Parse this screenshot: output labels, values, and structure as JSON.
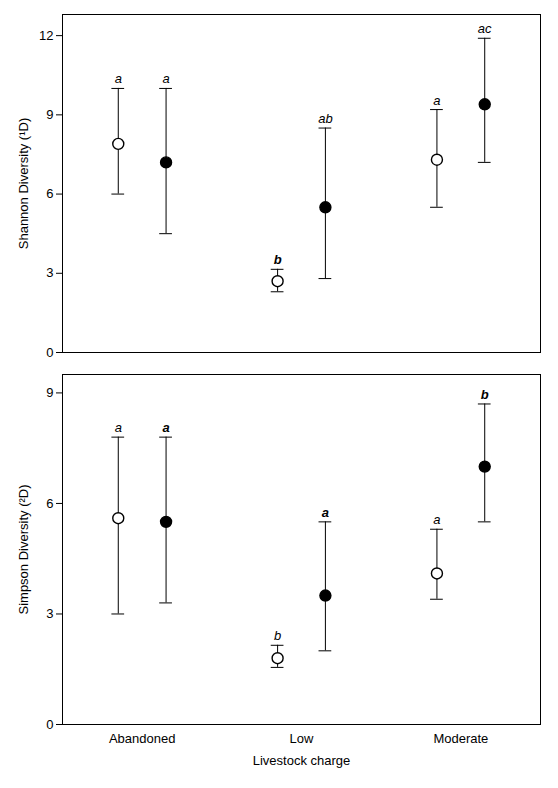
{
  "chart_data": [
    {
      "type": "scatter",
      "categories": [
        "Abandoned",
        "Low",
        "Moderate"
      ],
      "ylabel": "Shannon Diversity (¹D)",
      "ylim": [
        0,
        12.8
      ],
      "yticks": [
        0,
        3,
        6,
        9,
        12
      ],
      "tick_labels": "y",
      "series": [
        {
          "marker": "circle_open",
          "color": "black",
          "values": [
            7.9,
            2.7,
            7.3
          ],
          "yerr_lo": [
            1.9,
            0.4,
            1.8
          ],
          "yerr_hi": [
            2.1,
            0.45,
            1.9
          ],
          "labels": [
            "a",
            "b",
            "a"
          ],
          "labels_bold": [
            false,
            true,
            false
          ]
        },
        {
          "marker": "circle",
          "color": "black",
          "values": [
            7.2,
            5.5,
            9.4
          ],
          "yerr_lo": [
            2.7,
            2.7,
            2.2
          ],
          "yerr_hi": [
            2.8,
            3.0,
            2.5
          ],
          "labels": [
            "a",
            "ab",
            "ac"
          ],
          "labels_bold": [
            false,
            false,
            false
          ]
        }
      ]
    },
    {
      "type": "scatter",
      "categories": [
        "Abandoned",
        "Low",
        "Moderate"
      ],
      "xlabel": "Livestock charge",
      "ylabel": "Simpson Diversity (²D)",
      "ylim": [
        0,
        9.5
      ],
      "yticks": [
        0,
        3,
        6,
        9
      ],
      "series": [
        {
          "marker": "circle_open",
          "color": "black",
          "values": [
            5.6,
            1.8,
            4.1
          ],
          "yerr_lo": [
            2.6,
            0.25,
            0.7
          ],
          "yerr_hi": [
            2.2,
            0.35,
            1.2
          ],
          "labels": [
            "a",
            "b",
            "a"
          ],
          "labels_bold": [
            false,
            false,
            false
          ]
        },
        {
          "marker": "circle",
          "color": "black",
          "values": [
            5.5,
            3.5,
            7.0
          ],
          "yerr_lo": [
            2.2,
            1.5,
            1.5
          ],
          "yerr_hi": [
            2.3,
            2.0,
            1.7
          ],
          "labels": [
            "a",
            "a",
            "b"
          ],
          "labels_bold": [
            true,
            true,
            true
          ]
        }
      ]
    }
  ]
}
